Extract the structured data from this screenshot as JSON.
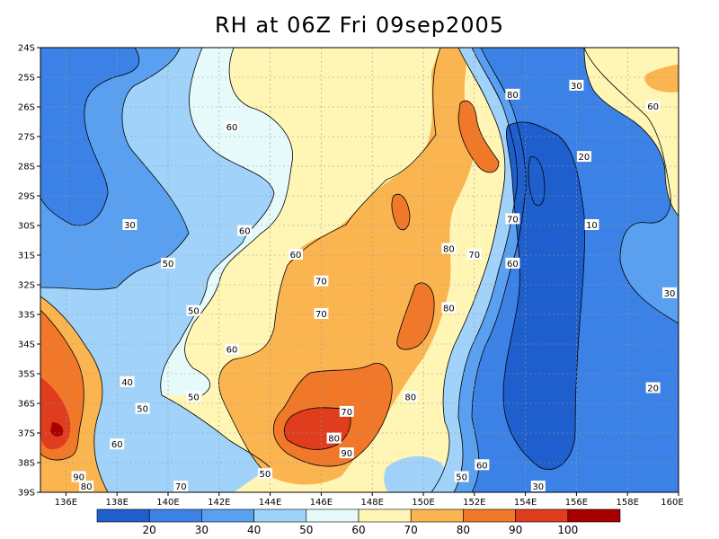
{
  "title": "RH at 06Z Fri 09sep2005",
  "map": {
    "lat_labels": [
      "24S",
      "25S",
      "26S",
      "27S",
      "28S",
      "29S",
      "30S",
      "31S",
      "32S",
      "33S",
      "34S",
      "35S",
      "36S",
      "37S",
      "38S",
      "39S"
    ],
    "lon_labels": [
      "136E",
      "138E",
      "140E",
      "142E",
      "144E",
      "146E",
      "148E",
      "150E",
      "152E",
      "154E",
      "156E",
      "158E",
      "160E"
    ],
    "contour_labels": [
      {
        "text": "80",
        "lon": 153.5,
        "lat": 25.6
      },
      {
        "text": "30",
        "lon": 156.0,
        "lat": 25.3
      },
      {
        "text": "60",
        "lon": 142.5,
        "lat": 26.7
      },
      {
        "text": "60",
        "lon": 159.0,
        "lat": 26.0
      },
      {
        "text": "20",
        "lon": 156.3,
        "lat": 27.7
      },
      {
        "text": "60",
        "lon": 143.0,
        "lat": 30.2
      },
      {
        "text": "30",
        "lon": 138.5,
        "lat": 30.0
      },
      {
        "text": "70",
        "lon": 153.5,
        "lat": 29.8
      },
      {
        "text": "10",
        "lon": 156.6,
        "lat": 30.0
      },
      {
        "text": "80",
        "lon": 151.0,
        "lat": 30.8
      },
      {
        "text": "70",
        "lon": 152.0,
        "lat": 31.0
      },
      {
        "text": "60",
        "lon": 145.0,
        "lat": 31.0
      },
      {
        "text": "50",
        "lon": 140.0,
        "lat": 31.3
      },
      {
        "text": "60",
        "lon": 153.5,
        "lat": 31.3
      },
      {
        "text": "70",
        "lon": 146.0,
        "lat": 31.9
      },
      {
        "text": "30",
        "lon": 160.3,
        "lat": 32.3
      },
      {
        "text": "50",
        "lon": 141.0,
        "lat": 32.9
      },
      {
        "text": "70",
        "lon": 146.0,
        "lat": 33.0
      },
      {
        "text": "80",
        "lon": 151.0,
        "lat": 32.8
      },
      {
        "text": "60",
        "lon": 142.5,
        "lat": 34.2
      },
      {
        "text": "40",
        "lon": 138.4,
        "lat": 35.3
      },
      {
        "text": "20",
        "lon": 159.0,
        "lat": 35.5
      },
      {
        "text": "50",
        "lon": 141.0,
        "lat": 35.8
      },
      {
        "text": "70",
        "lon": 147.0,
        "lat": 36.3
      },
      {
        "text": "80",
        "lon": 149.5,
        "lat": 35.8
      },
      {
        "text": "50",
        "lon": 139.0,
        "lat": 36.2
      },
      {
        "text": "60",
        "lon": 138.0,
        "lat": 37.4
      },
      {
        "text": "80",
        "lon": 146.5,
        "lat": 37.2
      },
      {
        "text": "90",
        "lon": 147.0,
        "lat": 37.7
      },
      {
        "text": "90",
        "lon": 136.5,
        "lat": 38.5
      },
      {
        "text": "50",
        "lon": 143.8,
        "lat": 38.4
      },
      {
        "text": "50",
        "lon": 151.5,
        "lat": 38.5
      },
      {
        "text": "60",
        "lon": 152.3,
        "lat": 38.1
      },
      {
        "text": "80",
        "lon": 136.8,
        "lat": 39.1
      },
      {
        "text": "70",
        "lon": 140.5,
        "lat": 39.4
      },
      {
        "text": "30",
        "lon": 154.5,
        "lat": 39.6
      }
    ]
  },
  "colorbar": {
    "colors": [
      "#1e5fcd",
      "#3c82e6",
      "#5aa0f0",
      "#a0d2fa",
      "#e6fafa",
      "#fff5b4",
      "#fab450",
      "#f07828",
      "#e03c1e",
      "#a80000"
    ],
    "labels": [
      "20",
      "30",
      "40",
      "50",
      "60",
      "70",
      "80",
      "90",
      "100"
    ]
  }
}
